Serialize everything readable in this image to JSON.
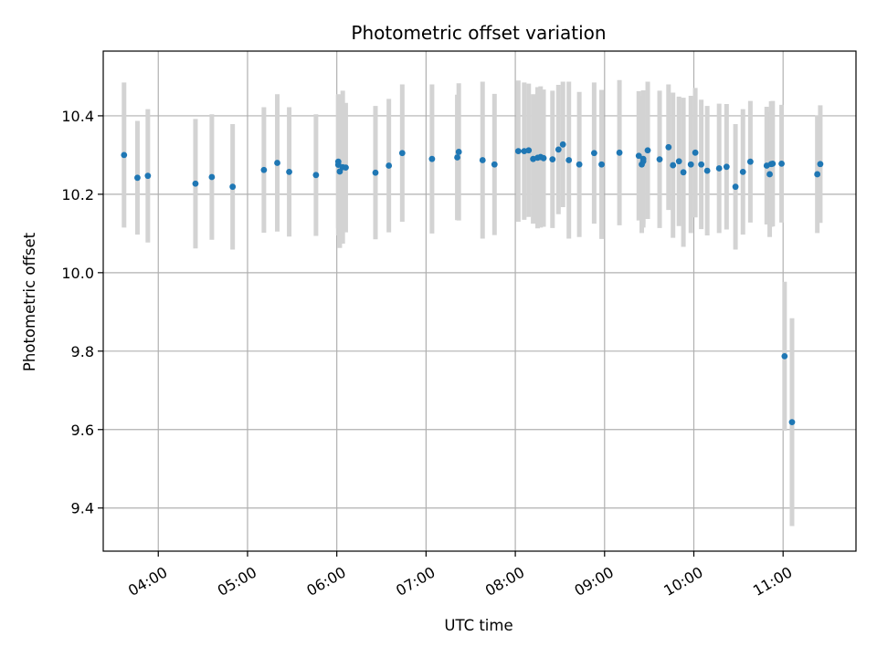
{
  "chart_data": {
    "type": "scatter",
    "title": "Photometric offset variation",
    "xlabel": "UTC time",
    "ylabel": "Photometric offset",
    "xlim": [
      "03:23",
      "11:49"
    ],
    "ylim": [
      9.29,
      10.565
    ],
    "x_ticks": [
      "04:00",
      "05:00",
      "06:00",
      "07:00",
      "08:00",
      "09:00",
      "10:00",
      "11:00"
    ],
    "y_ticks": [
      9.4,
      9.6,
      9.8,
      10.0,
      10.2,
      10.4
    ],
    "y_tick_labels": [
      "9.4",
      "9.6",
      "9.8",
      "10.0",
      "10.2",
      "10.4"
    ],
    "grid": true,
    "colors": {
      "point": "#1f77b4",
      "errorbar": "#d3d3d3",
      "grid": "#b0b0b0"
    },
    "series": [
      {
        "x": [
          "03:37",
          "03:46",
          "03:53",
          "04:25",
          "04:36",
          "04:50",
          "05:11",
          "05:20",
          "05:28",
          "05:46",
          "06:01",
          "06:01",
          "06:02",
          "06:04",
          "06:06",
          "06:26",
          "06:35",
          "06:44",
          "07:04",
          "07:21",
          "07:22",
          "07:38",
          "07:46",
          "08:02",
          "08:06",
          "08:09",
          "08:12",
          "08:15",
          "08:17",
          "08:19",
          "08:25",
          "08:29",
          "08:32",
          "08:36",
          "08:43",
          "08:53",
          "08:58",
          "09:10",
          "09:23",
          "09:25",
          "09:26",
          "09:26",
          "09:29",
          "09:37",
          "09:43",
          "09:46",
          "09:50",
          "09:53",
          "09:58",
          "10:01",
          "10:05",
          "10:09",
          "10:17",
          "10:22",
          "10:28",
          "10:33",
          "10:38",
          "10:49",
          "10:51",
          "10:52",
          "10:53",
          "10:59",
          "11:01",
          "11:06",
          "11:23",
          "11:25"
        ],
        "y": [
          10.3,
          10.242,
          10.247,
          10.227,
          10.244,
          10.219,
          10.262,
          10.28,
          10.257,
          10.249,
          10.283,
          10.275,
          10.258,
          10.269,
          10.268,
          10.255,
          10.273,
          10.305,
          10.29,
          10.294,
          10.308,
          10.287,
          10.276,
          10.31,
          10.31,
          10.312,
          10.29,
          10.293,
          10.295,
          10.292,
          10.289,
          10.314,
          10.327,
          10.287,
          10.276,
          10.305,
          10.276,
          10.306,
          10.298,
          10.276,
          10.29,
          10.284,
          10.312,
          10.289,
          10.32,
          10.274,
          10.284,
          10.256,
          10.276,
          10.306,
          10.276,
          10.26,
          10.266,
          10.27,
          10.219,
          10.257,
          10.283,
          10.273,
          10.251,
          10.277,
          10.278,
          10.278,
          9.787,
          9.619,
          10.251,
          10.277
        ],
        "err": [
          0.185,
          0.145,
          0.17,
          0.165,
          0.16,
          0.16,
          0.16,
          0.175,
          0.165,
          0.155,
          0.17,
          0.18,
          0.195,
          0.195,
          0.165,
          0.17,
          0.17,
          0.175,
          0.19,
          0.16,
          0.175,
          0.2,
          0.18,
          0.18,
          0.175,
          0.17,
          0.165,
          0.18,
          0.18,
          0.175,
          0.175,
          0.165,
          0.16,
          0.2,
          0.185,
          0.18,
          0.19,
          0.185,
          0.165,
          0.175,
          0.175,
          0.16,
          0.175,
          0.175,
          0.16,
          0.185,
          0.165,
          0.19,
          0.175,
          0.165,
          0.165,
          0.165,
          0.165,
          0.16,
          0.16,
          0.16,
          0.155,
          0.15,
          0.16,
          0.16,
          0.16,
          0.15,
          0.19,
          0.265,
          0.15,
          0.15
        ]
      }
    ]
  }
}
